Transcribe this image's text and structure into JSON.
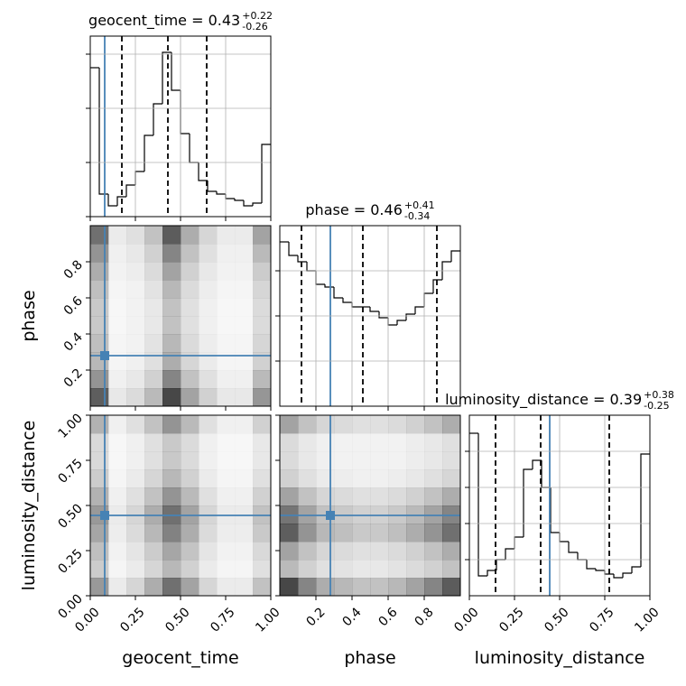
{
  "chart_data": [
    {
      "type": "histogram",
      "title": "geocent_time = 0.43",
      "title_upper": "+0.22",
      "title_lower": "-0.26",
      "bins": [
        0,
        0.05,
        0.1,
        0.15,
        0.2,
        0.25,
        0.3,
        0.35,
        0.4,
        0.45,
        0.5,
        0.55,
        0.6,
        0.65,
        0.7,
        0.75,
        0.8,
        0.85,
        0.9,
        0.95,
        1.0
      ],
      "counts": [
        165,
        25,
        12,
        22,
        35,
        50,
        90,
        125,
        182,
        140,
        92,
        60,
        40,
        28,
        25,
        20,
        18,
        12,
        15,
        80
      ],
      "color": "#000000",
      "quantiles": [
        0.175,
        0.43,
        0.645
      ],
      "truth": 0.08,
      "truth_color": "#4682b4",
      "xlim": [
        0,
        1
      ],
      "ylim": [
        0,
        200
      ],
      "xticks": [
        0,
        0.25,
        0.5,
        0.75,
        1
      ],
      "yticks": [
        0,
        60,
        120,
        180
      ],
      "grid": true
    },
    {
      "type": "heatmap",
      "x_edges": [
        0,
        0.1,
        0.2,
        0.3,
        0.4,
        0.5,
        0.6,
        0.7,
        0.8,
        0.9,
        1.0
      ],
      "y_edges": [
        0,
        0.1,
        0.2,
        0.3,
        0.4,
        0.5,
        0.6,
        0.7,
        0.8,
        0.9,
        1.0
      ],
      "z": [
        [
          0.63,
          0.09,
          0.14,
          0.27,
          0.72,
          0.36,
          0.18,
          0.09,
          0.09,
          0.41
        ],
        [
          0.42,
          0.06,
          0.09,
          0.18,
          0.48,
          0.24,
          0.12,
          0.06,
          0.06,
          0.27
        ],
        [
          0.28,
          0.04,
          0.06,
          0.12,
          0.32,
          0.16,
          0.08,
          0.04,
          0.04,
          0.18
        ],
        [
          0.25,
          0.04,
          0.05,
          0.11,
          0.28,
          0.14,
          0.07,
          0.04,
          0.04,
          0.16
        ],
        [
          0.21,
          0.03,
          0.05,
          0.09,
          0.24,
          0.12,
          0.06,
          0.03,
          0.03,
          0.14
        ],
        [
          0.21,
          0.03,
          0.05,
          0.09,
          0.24,
          0.12,
          0.06,
          0.03,
          0.03,
          0.14
        ],
        [
          0.25,
          0.04,
          0.05,
          0.11,
          0.28,
          0.14,
          0.07,
          0.04,
          0.04,
          0.16
        ],
        [
          0.32,
          0.05,
          0.07,
          0.14,
          0.36,
          0.18,
          0.09,
          0.05,
          0.05,
          0.2
        ],
        [
          0.42,
          0.06,
          0.09,
          0.18,
          0.48,
          0.24,
          0.12,
          0.06,
          0.06,
          0.27
        ],
        [
          0.56,
          0.08,
          0.12,
          0.24,
          0.64,
          0.32,
          0.16,
          0.08,
          0.08,
          0.36
        ]
      ],
      "color": "#000000",
      "truth_x": 0.08,
      "truth_y": 0.28,
      "truth_color": "#4682b4",
      "ylabel": "phase",
      "xlim": [
        0,
        1
      ],
      "ylim": [
        0,
        1
      ],
      "xticks": [
        0,
        0.25,
        0.5,
        0.75,
        1
      ],
      "yticks": [
        0.2,
        0.4,
        0.6,
        0.8
      ]
    },
    {
      "type": "histogram",
      "title": "phase = 0.46",
      "title_upper": "+0.41",
      "title_lower": "-0.34",
      "bins": [
        0,
        0.05,
        0.1,
        0.15,
        0.2,
        0.25,
        0.3,
        0.35,
        0.4,
        0.45,
        0.5,
        0.55,
        0.6,
        0.65,
        0.7,
        0.75,
        0.8,
        0.85,
        0.9,
        0.95,
        1.0
      ],
      "counts": [
        182,
        167,
        160,
        150,
        135,
        132,
        120,
        115,
        110,
        110,
        105,
        98,
        90,
        95,
        102,
        110,
        125,
        140,
        160,
        172
      ],
      "color": "#000000",
      "quantiles": [
        0.12,
        0.46,
        0.87
      ],
      "truth": 0.28,
      "truth_color": "#4682b4",
      "xlim": [
        0,
        1
      ],
      "ylim": [
        0,
        200
      ],
      "xticks": [
        0.2,
        0.4,
        0.6,
        0.8
      ],
      "yticks": [
        50,
        100,
        150
      ],
      "grid": true
    },
    {
      "type": "heatmap",
      "x_edges": [
        0,
        0.1,
        0.2,
        0.3,
        0.4,
        0.5,
        0.6,
        0.7,
        0.8,
        0.9,
        1.0
      ],
      "y_edges": [
        0,
        0.1,
        0.2,
        0.3,
        0.4,
        0.5,
        0.6,
        0.7,
        0.8,
        0.9,
        1.0
      ],
      "z": [
        [
          0.4,
          0.08,
          0.16,
          0.32,
          0.56,
          0.36,
          0.16,
          0.08,
          0.08,
          0.24
        ],
        [
          0.2,
          0.04,
          0.08,
          0.16,
          0.28,
          0.18,
          0.08,
          0.04,
          0.04,
          0.12
        ],
        [
          0.25,
          0.05,
          0.1,
          0.2,
          0.35,
          0.23,
          0.1,
          0.05,
          0.05,
          0.15
        ],
        [
          0.35,
          0.07,
          0.14,
          0.28,
          0.49,
          0.32,
          0.14,
          0.07,
          0.07,
          0.21
        ],
        [
          0.4,
          0.08,
          0.16,
          0.32,
          0.56,
          0.36,
          0.16,
          0.08,
          0.08,
          0.24
        ],
        [
          0.3,
          0.06,
          0.12,
          0.24,
          0.42,
          0.27,
          0.12,
          0.06,
          0.06,
          0.18
        ],
        [
          0.2,
          0.04,
          0.08,
          0.16,
          0.28,
          0.18,
          0.08,
          0.04,
          0.04,
          0.12
        ],
        [
          0.15,
          0.03,
          0.06,
          0.12,
          0.21,
          0.14,
          0.06,
          0.03,
          0.03,
          0.09
        ],
        [
          0.15,
          0.03,
          0.06,
          0.12,
          0.21,
          0.14,
          0.06,
          0.03,
          0.03,
          0.09
        ],
        [
          0.3,
          0.06,
          0.12,
          0.24,
          0.42,
          0.27,
          0.12,
          0.06,
          0.06,
          0.18
        ]
      ],
      "color": "#000000",
      "truth_x": 0.08,
      "truth_y": 0.445,
      "truth_color": "#4682b4",
      "xlabel": "geocent_time",
      "ylabel": "luminosity_distance",
      "xlim": [
        0,
        1
      ],
      "ylim": [
        0,
        1
      ],
      "xticks": [
        {
          "value": 0,
          "label": "0.00"
        },
        {
          "value": 0.25,
          "label": "0.25"
        },
        {
          "value": 0.5,
          "label": "0.50"
        },
        {
          "value": 0.75,
          "label": "0.75"
        },
        {
          "value": 1,
          "label": "1.00"
        }
      ],
      "yticks": [
        {
          "value": 0,
          "label": "0.00"
        },
        {
          "value": 0.25,
          "label": "0.25"
        },
        {
          "value": 0.5,
          "label": "0.50"
        },
        {
          "value": 0.75,
          "label": "0.75"
        },
        {
          "value": 1,
          "label": "1.00"
        }
      ]
    },
    {
      "type": "heatmap",
      "x_edges": [
        0,
        0.1,
        0.2,
        0.3,
        0.4,
        0.5,
        0.6,
        0.7,
        0.8,
        0.9,
        1.0
      ],
      "y_edges": [
        0,
        0.1,
        0.2,
        0.3,
        0.4,
        0.5,
        0.6,
        0.7,
        0.8,
        0.9,
        1.0
      ],
      "z": [
        [
          0.72,
          0.48,
          0.32,
          0.28,
          0.24,
          0.24,
          0.28,
          0.36,
          0.48,
          0.64
        ],
        [
          0.27,
          0.18,
          0.12,
          0.11,
          0.09,
          0.09,
          0.11,
          0.14,
          0.18,
          0.24
        ],
        [
          0.36,
          0.24,
          0.16,
          0.14,
          0.12,
          0.12,
          0.14,
          0.18,
          0.24,
          0.32
        ],
        [
          0.63,
          0.42,
          0.28,
          0.25,
          0.21,
          0.21,
          0.25,
          0.32,
          0.42,
          0.56
        ],
        [
          0.54,
          0.36,
          0.24,
          0.21,
          0.18,
          0.18,
          0.21,
          0.27,
          0.36,
          0.48
        ],
        [
          0.36,
          0.24,
          0.16,
          0.14,
          0.12,
          0.12,
          0.14,
          0.18,
          0.24,
          0.32
        ],
        [
          0.18,
          0.12,
          0.08,
          0.07,
          0.06,
          0.06,
          0.07,
          0.09,
          0.12,
          0.16
        ],
        [
          0.14,
          0.09,
          0.06,
          0.05,
          0.05,
          0.05,
          0.05,
          0.07,
          0.09,
          0.12
        ],
        [
          0.14,
          0.09,
          0.06,
          0.05,
          0.05,
          0.05,
          0.05,
          0.07,
          0.09,
          0.12
        ],
        [
          0.36,
          0.24,
          0.16,
          0.14,
          0.12,
          0.12,
          0.14,
          0.18,
          0.24,
          0.32
        ]
      ],
      "color": "#000000",
      "truth_x": 0.28,
      "truth_y": 0.445,
      "truth_color": "#4682b4",
      "xlabel": "phase",
      "xlim": [
        0,
        1
      ],
      "ylim": [
        0,
        1
      ],
      "xticks": [
        0.2,
        0.4,
        0.6,
        0.8
      ],
      "yticks": [
        0,
        0.25,
        0.5,
        0.75,
        1
      ]
    },
    {
      "type": "histogram",
      "title": "luminosity_distance = 0.39",
      "title_upper": "+0.38",
      "title_lower": "-0.25",
      "bins": [
        0,
        0.05,
        0.1,
        0.15,
        0.2,
        0.25,
        0.3,
        0.35,
        0.4,
        0.45,
        0.5,
        0.55,
        0.6,
        0.65,
        0.7,
        0.75,
        0.8,
        0.85,
        0.9,
        0.95,
        1.0
      ],
      "counts": [
        180,
        22,
        28,
        40,
        52,
        65,
        140,
        150,
        120,
        70,
        60,
        48,
        40,
        30,
        28,
        24,
        20,
        25,
        32,
        157
      ],
      "color": "#000000",
      "quantiles": [
        0.145,
        0.395,
        0.775
      ],
      "truth": 0.445,
      "truth_color": "#4682b4",
      "xlabel": "luminosity_distance",
      "xlim": [
        0,
        1
      ],
      "ylim": [
        0,
        200
      ],
      "xticks": [
        {
          "value": 0,
          "label": "0.00"
        },
        {
          "value": 0.25,
          "label": "0.25"
        },
        {
          "value": 0.5,
          "label": "0.50"
        },
        {
          "value": 0.75,
          "label": "0.75"
        },
        {
          "value": 1,
          "label": "1.00"
        }
      ],
      "yticks": [
        40,
        80,
        120,
        160
      ],
      "grid": true
    }
  ]
}
